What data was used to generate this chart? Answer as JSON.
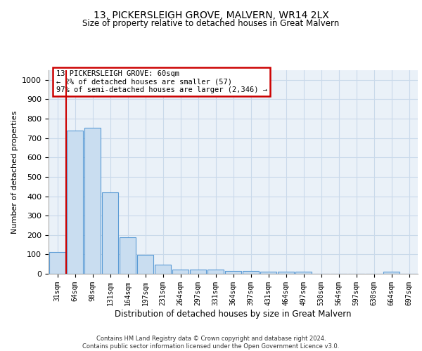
{
  "title1": "13, PICKERSLEIGH GROVE, MALVERN, WR14 2LX",
  "title2": "Size of property relative to detached houses in Great Malvern",
  "xlabel": "Distribution of detached houses by size in Great Malvern",
  "ylabel": "Number of detached properties",
  "categories": [
    "31sqm",
    "64sqm",
    "98sqm",
    "131sqm",
    "164sqm",
    "197sqm",
    "231sqm",
    "264sqm",
    "297sqm",
    "331sqm",
    "364sqm",
    "397sqm",
    "431sqm",
    "464sqm",
    "497sqm",
    "530sqm",
    "564sqm",
    "597sqm",
    "630sqm",
    "664sqm",
    "697sqm"
  ],
  "values": [
    113,
    737,
    752,
    420,
    190,
    97,
    46,
    22,
    22,
    22,
    15,
    15,
    10,
    10,
    10,
    0,
    0,
    0,
    0,
    10,
    0
  ],
  "bar_color": "#c9ddf0",
  "bar_edge_color": "#5b9bd5",
  "grid_color": "#c9d9ea",
  "background_color": "#eaf1f8",
  "red_line_x": 0.5,
  "annotation_text": "13 PICKERSLEIGH GROVE: 60sqm\n← 2% of detached houses are smaller (57)\n97% of semi-detached houses are larger (2,346) →",
  "annotation_box_color": "#ffffff",
  "annotation_border_color": "#cc0000",
  "ylim": [
    0,
    1050
  ],
  "yticks": [
    0,
    100,
    200,
    300,
    400,
    500,
    600,
    700,
    800,
    900,
    1000
  ],
  "footer1": "Contains HM Land Registry data © Crown copyright and database right 2024.",
  "footer2": "Contains public sector information licensed under the Open Government Licence v3.0."
}
